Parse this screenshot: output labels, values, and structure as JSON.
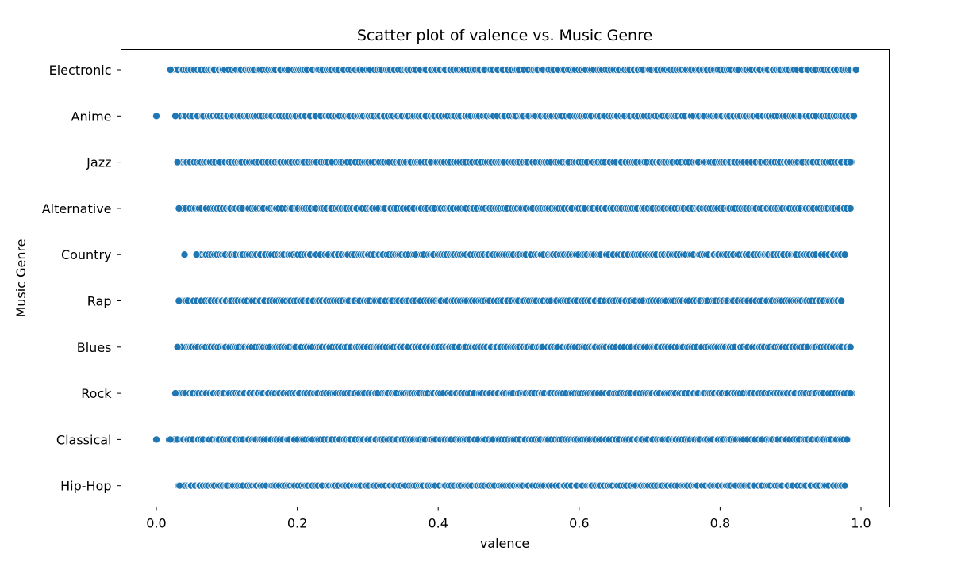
{
  "chart_data": {
    "type": "scatter",
    "title": "Scatter plot of valence vs. Music Genre",
    "xlabel": "valence",
    "ylabel": "Music Genre",
    "xlim": [
      -0.05,
      1.04
    ],
    "xticks": [
      "0.0",
      "0.2",
      "0.4",
      "0.6",
      "0.8",
      "1.0"
    ],
    "xtick_values": [
      0.0,
      0.2,
      0.4,
      0.6,
      0.8,
      1.0
    ],
    "categories": [
      "Electronic",
      "Anime",
      "Jazz",
      "Alternative",
      "Country",
      "Rap",
      "Blues",
      "Rock",
      "Classical",
      "Hip-Hop"
    ],
    "series": [
      {
        "category": "Electronic",
        "min": 0.02,
        "max": 0.993,
        "outliers": []
      },
      {
        "category": "Anime",
        "min": 0.027,
        "max": 0.99,
        "outliers": [
          0.0
        ]
      },
      {
        "category": "Jazz",
        "min": 0.03,
        "max": 0.985,
        "outliers": []
      },
      {
        "category": "Alternative",
        "min": 0.032,
        "max": 0.985,
        "outliers": []
      },
      {
        "category": "Country",
        "min": 0.057,
        "max": 0.977,
        "outliers": [
          0.04
        ]
      },
      {
        "category": "Rap",
        "min": 0.032,
        "max": 0.972,
        "outliers": []
      },
      {
        "category": "Blues",
        "min": 0.03,
        "max": 0.985,
        "outliers": []
      },
      {
        "category": "Rock",
        "min": 0.027,
        "max": 0.985,
        "outliers": []
      },
      {
        "category": "Classical",
        "min": 0.02,
        "max": 0.98,
        "outliers": [
          0.0
        ]
      },
      {
        "category": "Hip-Hop",
        "min": 0.033,
        "max": 0.977,
        "outliers": []
      }
    ],
    "marker_color": "#1f77b4",
    "marker_edge_color": "#ffffff",
    "grid": false,
    "legend": "none"
  }
}
